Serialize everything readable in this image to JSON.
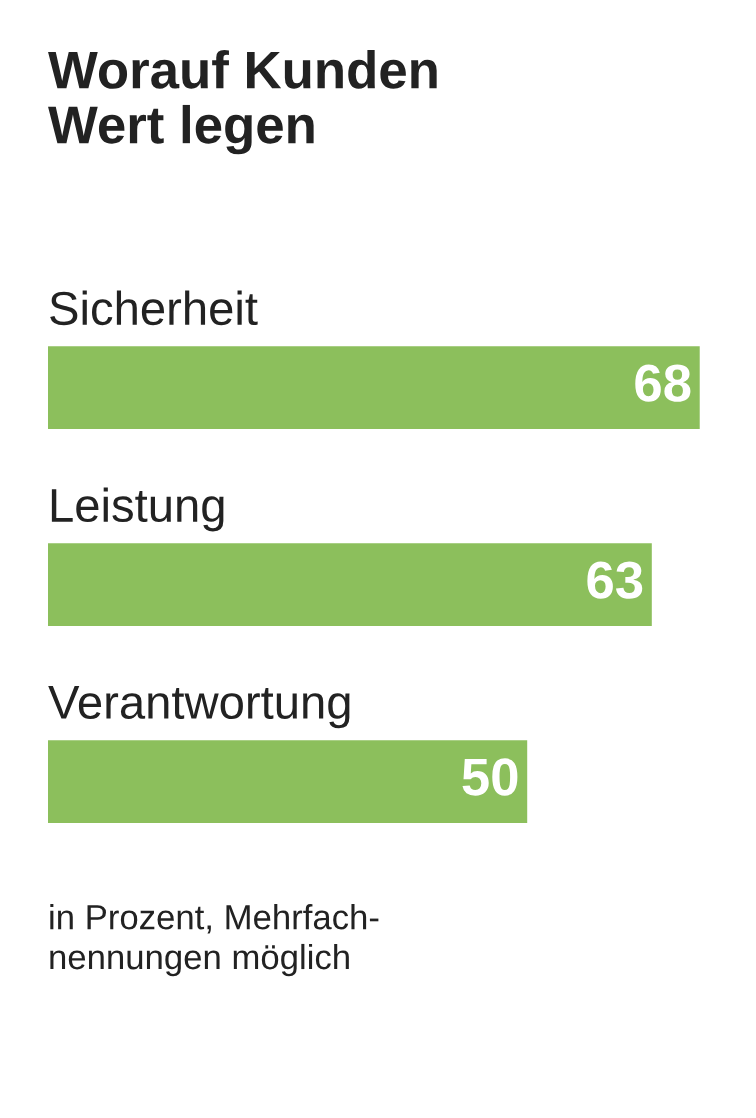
{
  "chart_data": {
    "type": "bar",
    "orientation": "horizontal",
    "title": "Worauf Kunden\nWert legen",
    "categories": [
      "Sicherheit",
      "Leistung",
      "Verantwortung"
    ],
    "values": [
      68,
      63,
      50
    ],
    "color": "#8cbf5c",
    "data_labels": true,
    "annotations": [
      "in Prozent, Mehrfach-\nnennungen möglich"
    ]
  }
}
